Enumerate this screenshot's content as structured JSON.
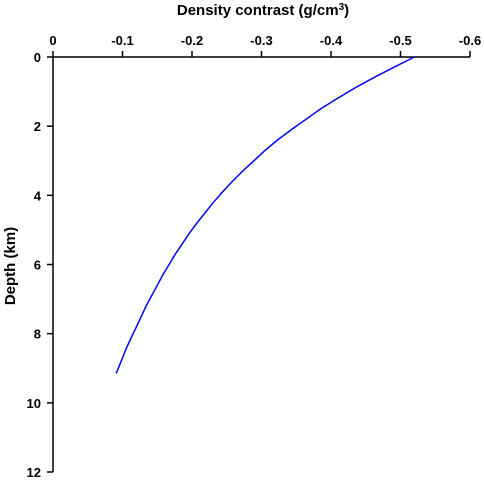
{
  "chart_data": {
    "type": "line",
    "title": "",
    "xlabel": "Density contrast (g/cm",
    "xlabel_sup": "3",
    "xlabel_end": ")",
    "ylabel": "Depth (km)",
    "x_axis_position": "top",
    "y_axis_inverted": true,
    "grid": false,
    "xlim": [
      0,
      -0.6
    ],
    "ylim": [
      0,
      12
    ],
    "xticks": [
      0,
      -0.1,
      -0.2,
      -0.3,
      -0.4,
      -0.5,
      -0.6
    ],
    "xtick_labels": [
      "0",
      "-0.1",
      "-0.2",
      "-0.3",
      "-0.4",
      "-0.5",
      "-0.6"
    ],
    "yticks": [
      0,
      2,
      4,
      6,
      8,
      10,
      12
    ],
    "ytick_labels": [
      "0",
      "2",
      "4",
      "6",
      "8",
      "10",
      "12"
    ],
    "series": [
      {
        "color": "#0000ff",
        "points": [
          [
            -0.52,
            0.0
          ],
          [
            -0.49,
            0.3
          ],
          [
            -0.461,
            0.6
          ],
          [
            -0.434,
            0.9
          ],
          [
            -0.409,
            1.2
          ],
          [
            -0.385,
            1.5
          ],
          [
            -0.364,
            1.8
          ],
          [
            -0.343,
            2.1
          ],
          [
            -0.323,
            2.4
          ],
          [
            -0.305,
            2.7
          ],
          [
            -0.289,
            3.0
          ],
          [
            -0.273,
            3.3
          ],
          [
            -0.258,
            3.6
          ],
          [
            -0.244,
            3.9
          ],
          [
            -0.231,
            4.2
          ],
          [
            -0.219,
            4.5
          ],
          [
            -0.207,
            4.8
          ],
          [
            -0.196,
            5.1
          ],
          [
            -0.186,
            5.4
          ],
          [
            -0.176,
            5.7
          ],
          [
            -0.167,
            6.0
          ],
          [
            -0.158,
            6.3
          ],
          [
            -0.15,
            6.6
          ],
          [
            -0.142,
            6.9
          ],
          [
            -0.134,
            7.2
          ],
          [
            -0.127,
            7.5
          ],
          [
            -0.12,
            7.8
          ],
          [
            -0.113,
            8.1
          ],
          [
            -0.106,
            8.4
          ],
          [
            -0.1,
            8.7
          ],
          [
            -0.094,
            9.0
          ],
          [
            -0.091,
            9.15
          ]
        ]
      }
    ]
  }
}
